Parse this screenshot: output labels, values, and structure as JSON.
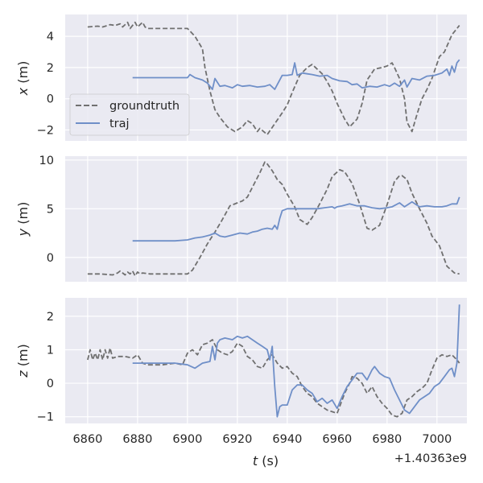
{
  "colors": {
    "panel_bg": "#eaeaf2",
    "grid": "#ffffff",
    "groundtruth": "#707070",
    "traj": "#6f8fc8",
    "text": "#262626"
  },
  "chart_data": [
    {
      "type": "line",
      "ylabel": "x (m)",
      "ylabel_var": "x",
      "ylabel_unit": " (m)",
      "xlim": [
        6851,
        7012
      ],
      "ylim": [
        -2.7,
        5.4
      ],
      "yticks": [
        -2,
        0,
        2,
        4
      ],
      "ytick_labels": [
        "−2",
        "0",
        "2",
        "4"
      ],
      "grid": true,
      "legend_placement": "lower-left",
      "series": [
        {
          "name": "groundtruth",
          "style": "dashed",
          "color": "#707070",
          "x": [
            6860,
            6864,
            6866,
            6868,
            6869,
            6871,
            6873,
            6874,
            6876,
            6877,
            6879,
            6880,
            6882,
            6883,
            6884,
            6890,
            6900,
            6903,
            6906,
            6907,
            6909,
            6911,
            6913,
            6916,
            6919,
            6922,
            6924,
            6926,
            6928,
            6929,
            6932,
            6935,
            6938,
            6940,
            6942,
            6945,
            6948,
            6950,
            6952,
            6954,
            6956,
            6958,
            6960,
            6963,
            6965,
            6968,
            6970,
            6972,
            6975,
            6978,
            6980,
            6982,
            6983,
            6985,
            6987,
            6988,
            6990,
            6992,
            6994,
            6996,
            6998,
            7001,
            7003,
            7006,
            7009
          ],
          "y": [
            4.6,
            4.65,
            4.6,
            4.7,
            4.75,
            4.7,
            4.8,
            4.6,
            4.9,
            4.5,
            4.9,
            4.6,
            4.9,
            4.6,
            4.5,
            4.5,
            4.5,
            4.0,
            3.2,
            2.0,
            0.5,
            -0.7,
            -1.2,
            -1.8,
            -2.1,
            -1.8,
            -1.4,
            -1.6,
            -2.1,
            -1.9,
            -2.3,
            -1.6,
            -0.9,
            -0.4,
            0.4,
            1.5,
            2.0,
            2.2,
            1.9,
            1.6,
            1.1,
            0.5,
            -0.3,
            -1.3,
            -1.8,
            -1.3,
            -0.3,
            1.2,
            1.9,
            2.0,
            2.1,
            2.3,
            2.0,
            1.3,
            0.0,
            -1.5,
            -2.1,
            -1.0,
            0.0,
            0.6,
            1.3,
            2.7,
            3.0,
            4.1,
            4.7
          ]
        },
        {
          "name": "traj",
          "style": "solid",
          "color": "#6f8fc8",
          "x": [
            6878,
            6885,
            6890,
            6895,
            6900,
            6901,
            6903,
            6906,
            6908,
            6910,
            6911,
            6913,
            6915,
            6918,
            6920,
            6922,
            6925,
            6928,
            6931,
            6933,
            6935,
            6936,
            6938,
            6940,
            6942,
            6943,
            6944,
            6946,
            6948,
            6950,
            6953,
            6956,
            6958,
            6961,
            6964,
            6966,
            6968,
            6970,
            6973,
            6976,
            6979,
            6981,
            6983,
            6985,
            6987,
            6988,
            6990,
            6993,
            6996,
            6999,
            7002,
            7004,
            7005,
            7006,
            7007,
            7008,
            7009
          ],
          "y": [
            1.35,
            1.35,
            1.35,
            1.35,
            1.35,
            1.55,
            1.35,
            1.2,
            1.0,
            0.6,
            1.3,
            0.8,
            0.85,
            0.7,
            0.9,
            0.8,
            0.85,
            0.75,
            0.8,
            0.9,
            0.6,
            0.9,
            1.5,
            1.5,
            1.55,
            2.3,
            1.5,
            1.65,
            1.6,
            1.55,
            1.45,
            1.5,
            1.3,
            1.15,
            1.1,
            0.9,
            0.95,
            0.7,
            0.8,
            0.75,
            0.9,
            0.8,
            1.0,
            0.8,
            1.2,
            0.75,
            1.3,
            1.2,
            1.45,
            1.5,
            1.65,
            1.9,
            1.5,
            2.1,
            1.7,
            2.3,
            2.5
          ]
        }
      ]
    },
    {
      "type": "line",
      "ylabel": "y (m)",
      "ylabel_var": "y",
      "ylabel_unit": " (m)",
      "xlim": [
        6851,
        7012
      ],
      "ylim": [
        -2.5,
        10.4
      ],
      "yticks": [
        0,
        5,
        10
      ],
      "ytick_labels": [
        "0",
        "5",
        "10"
      ],
      "grid": true,
      "series": [
        {
          "name": "groundtruth",
          "style": "dashed",
          "color": "#707070",
          "x": [
            6860,
            6865,
            6870,
            6872,
            6873,
            6875,
            6876,
            6877,
            6878,
            6879,
            6880,
            6881,
            6882,
            6885,
            6890,
            6895,
            6900,
            6902,
            6905,
            6908,
            6911,
            6914,
            6917,
            6920,
            6922,
            6924,
            6926,
            6929,
            6931,
            6932,
            6934,
            6936,
            6938,
            6940,
            6943,
            6945,
            6948,
            6950,
            6953,
            6956,
            6958,
            6961,
            6963,
            6966,
            6969,
            6972,
            6974,
            6977,
            6980,
            6983,
            6985,
            6986,
            6988,
            6990,
            6993,
            6996,
            6998,
            7001,
            7004,
            7007,
            7009
          ],
          "y": [
            -1.7,
            -1.7,
            -1.8,
            -1.6,
            -1.4,
            -1.8,
            -1.5,
            -1.7,
            -1.4,
            -1.9,
            -1.5,
            -1.7,
            -1.6,
            -1.7,
            -1.7,
            -1.7,
            -1.7,
            -1.3,
            0.0,
            1.4,
            2.6,
            3.9,
            5.3,
            5.6,
            5.8,
            6.2,
            7.2,
            8.7,
            9.8,
            9.6,
            8.9,
            8.0,
            7.5,
            6.5,
            5.2,
            3.9,
            3.4,
            4.1,
            5.5,
            7.0,
            8.3,
            9.0,
            8.8,
            7.6,
            5.5,
            3.0,
            2.8,
            3.3,
            5.4,
            7.8,
            8.4,
            8.4,
            8.0,
            6.6,
            5.0,
            3.5,
            2.2,
            1.2,
            -0.9,
            -1.6,
            -1.7
          ]
        },
        {
          "name": "traj",
          "style": "solid",
          "color": "#6f8fc8",
          "x": [
            6878,
            6885,
            6890,
            6895,
            6900,
            6903,
            6906,
            6909,
            6911,
            6913,
            6915,
            6918,
            6921,
            6924,
            6926,
            6928,
            6930,
            6932,
            6934,
            6935,
            6936,
            6937,
            6938,
            6940,
            6943,
            6946,
            6949,
            6952,
            6955,
            6958,
            6959,
            6960,
            6962,
            6965,
            6968,
            6971,
            6974,
            6977,
            6980,
            6982,
            6985,
            6987,
            6990,
            6993,
            6996,
            6999,
            7002,
            7004,
            7006,
            7008,
            7009
          ],
          "y": [
            1.7,
            1.7,
            1.7,
            1.7,
            1.8,
            2.0,
            2.1,
            2.3,
            2.5,
            2.2,
            2.1,
            2.3,
            2.5,
            2.4,
            2.6,
            2.7,
            2.9,
            3.0,
            2.9,
            3.3,
            2.9,
            4.0,
            4.8,
            5.0,
            5.0,
            5.0,
            5.0,
            5.0,
            5.1,
            5.2,
            5.05,
            5.2,
            5.3,
            5.5,
            5.3,
            5.3,
            5.1,
            5.0,
            5.1,
            5.2,
            5.6,
            5.2,
            5.7,
            5.2,
            5.3,
            5.2,
            5.2,
            5.3,
            5.5,
            5.5,
            6.2
          ]
        }
      ]
    },
    {
      "type": "line",
      "ylabel": "z (m)",
      "ylabel_var": "z",
      "ylabel_unit": " (m)",
      "xlabel": "t (s)",
      "xlabel_var": "t",
      "xlabel_unit": " (s)",
      "x_offset_label": "+1.40363e9",
      "xlim": [
        6851,
        7012
      ],
      "ylim": [
        -1.2,
        2.55
      ],
      "xticks": [
        6860,
        6880,
        6900,
        6920,
        6940,
        6960,
        6980,
        7000
      ],
      "xtick_labels": [
        "6860",
        "6880",
        "6900",
        "6920",
        "6940",
        "6960",
        "6980",
        "7000"
      ],
      "yticks": [
        -1,
        0,
        1,
        2
      ],
      "ytick_labels": [
        "−1",
        "0",
        "1",
        "2"
      ],
      "grid": true,
      "series": [
        {
          "name": "groundtruth",
          "style": "dashed",
          "color": "#707070",
          "x": [
            6860,
            6861,
            6862,
            6863,
            6864,
            6865,
            6866,
            6867,
            6868,
            6869,
            6870,
            6872,
            6875,
            6878,
            6880,
            6882,
            6884,
            6887,
            6890,
            6895,
            6898,
            6900,
            6902,
            6904,
            6906,
            6908,
            6910,
            6912,
            6914,
            6916,
            6918,
            6920,
            6922,
            6924,
            6926,
            6928,
            6930,
            6932,
            6934,
            6936,
            6938,
            6940,
            6942,
            6944,
            6946,
            6948,
            6950,
            6952,
            6954,
            6956,
            6958,
            6960,
            6962,
            6963,
            6965,
            6966,
            6968,
            6970,
            6972,
            6974,
            6976,
            6978,
            6980,
            6982,
            6984,
            6986,
            6988,
            6990,
            6992,
            6994,
            6996,
            6998,
            7000,
            7002,
            7004,
            7006,
            7008,
            7009
          ],
          "y": [
            0.7,
            1.0,
            0.7,
            0.9,
            0.7,
            1.0,
            0.7,
            1.0,
            0.75,
            1.05,
            0.75,
            0.8,
            0.8,
            0.75,
            0.85,
            0.6,
            0.55,
            0.55,
            0.55,
            0.6,
            0.55,
            0.9,
            1.0,
            0.85,
            1.15,
            1.2,
            1.3,
            1.0,
            0.9,
            0.85,
            0.95,
            1.2,
            1.1,
            0.8,
            0.7,
            0.5,
            0.45,
            0.7,
            0.85,
            0.6,
            0.45,
            0.5,
            0.3,
            0.2,
            -0.1,
            -0.3,
            -0.4,
            -0.6,
            -0.7,
            -0.8,
            -0.85,
            -0.9,
            -0.5,
            -0.3,
            0.0,
            0.2,
            0.15,
            0.0,
            -0.3,
            -0.1,
            -0.4,
            -0.6,
            -0.75,
            -0.95,
            -1.0,
            -0.9,
            -0.5,
            -0.4,
            -0.25,
            -0.15,
            0.0,
            0.4,
            0.75,
            0.85,
            0.8,
            0.85,
            0.7,
            0.6
          ]
        },
        {
          "name": "traj",
          "style": "solid",
          "color": "#6f8fc8",
          "x": [
            6878,
            6885,
            6890,
            6895,
            6900,
            6903,
            6906,
            6909,
            6910,
            6911,
            6912,
            6913,
            6915,
            6918,
            6920,
            6922,
            6924,
            6926,
            6928,
            6930,
            6932,
            6933,
            6934,
            6935,
            6936,
            6937,
            6938,
            6940,
            6942,
            6944,
            6946,
            6948,
            6950,
            6952,
            6954,
            6956,
            6958,
            6960,
            6962,
            6964,
            6966,
            6968,
            6970,
            6972,
            6974,
            6975,
            6977,
            6979,
            6981,
            6983,
            6985,
            6987,
            6989,
            6991,
            6993,
            6995,
            6997,
            6999,
            7001,
            7003,
            7005,
            7006,
            7007,
            7008,
            7009
          ],
          "y": [
            0.6,
            0.6,
            0.6,
            0.6,
            0.55,
            0.45,
            0.6,
            0.65,
            1.1,
            0.7,
            1.2,
            1.3,
            1.35,
            1.3,
            1.4,
            1.35,
            1.4,
            1.3,
            1.2,
            1.1,
            1.0,
            0.7,
            1.1,
            -0.1,
            -1.0,
            -0.7,
            -0.65,
            -0.65,
            -0.2,
            -0.05,
            -0.05,
            -0.2,
            -0.3,
            -0.55,
            -0.45,
            -0.6,
            -0.5,
            -0.75,
            -0.4,
            -0.1,
            0.1,
            0.3,
            0.3,
            0.1,
            0.4,
            0.5,
            0.3,
            0.2,
            0.15,
            -0.2,
            -0.5,
            -0.8,
            -0.9,
            -0.7,
            -0.5,
            -0.4,
            -0.3,
            -0.1,
            0.0,
            0.2,
            0.4,
            0.45,
            0.2,
            0.6,
            2.35
          ]
        }
      ]
    }
  ]
}
